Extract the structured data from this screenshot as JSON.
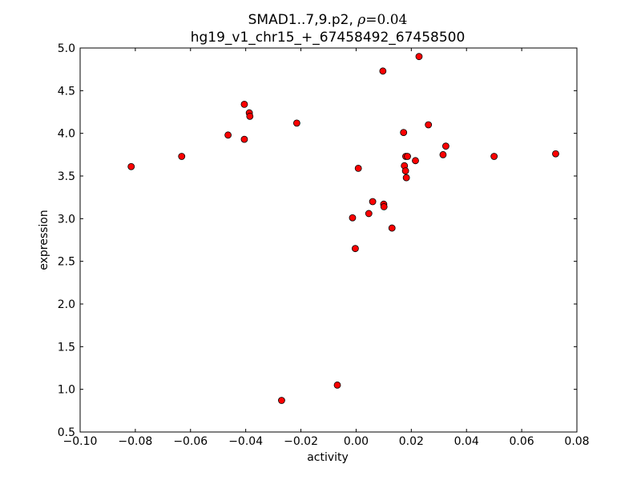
{
  "chart_data": {
    "type": "scatter",
    "title": {
      "prefix": "SMAD1..7,9.p2, ",
      "rho_symbol": "ρ",
      "rho_equals": "=",
      "rho_value": "0.04"
    },
    "subtitle": "hg19_v1_chr15_+_67458492_67458500",
    "xlabel": "activity",
    "ylabel": "expression",
    "xlim": [
      -0.1,
      0.08
    ],
    "ylim": [
      0.5,
      5.0
    ],
    "x_ticks": [
      -0.1,
      -0.08,
      -0.06,
      -0.04,
      -0.02,
      0.0,
      0.02,
      0.04,
      0.06,
      0.08
    ],
    "x_tick_labels": [
      "−0.10",
      "−0.08",
      "−0.06",
      "−0.04",
      "−0.02",
      "0.00",
      "0.02",
      "0.04",
      "0.06",
      "0.08"
    ],
    "y_ticks": [
      0.5,
      1.0,
      1.5,
      2.0,
      2.5,
      3.0,
      3.5,
      4.0,
      4.5,
      5.0
    ],
    "y_tick_labels": [
      "0.5",
      "1.0",
      "1.5",
      "2.0",
      "2.5",
      "3.0",
      "3.5",
      "4.0",
      "4.5",
      "5.0"
    ],
    "grid": false,
    "marker_color": "#ff0000",
    "marker_edge_color": "#000000",
    "points": [
      {
        "x": -0.0815,
        "y": 3.61
      },
      {
        "x": -0.0632,
        "y": 3.73
      },
      {
        "x": -0.0464,
        "y": 3.98
      },
      {
        "x": -0.0405,
        "y": 4.34
      },
      {
        "x": -0.0405,
        "y": 3.93
      },
      {
        "x": -0.0387,
        "y": 4.24
      },
      {
        "x": -0.0385,
        "y": 4.2
      },
      {
        "x": -0.0215,
        "y": 4.12
      },
      {
        "x": -0.027,
        "y": 0.87
      },
      {
        "x": -0.0068,
        "y": 1.05
      },
      {
        "x": -0.0013,
        "y": 3.01
      },
      {
        "x": -0.0003,
        "y": 2.65
      },
      {
        "x": 0.0008,
        "y": 3.59
      },
      {
        "x": 0.0046,
        "y": 3.06
      },
      {
        "x": 0.006,
        "y": 3.2
      },
      {
        "x": 0.01,
        "y": 3.17
      },
      {
        "x": 0.0101,
        "y": 3.14
      },
      {
        "x": 0.0097,
        "y": 4.73
      },
      {
        "x": 0.013,
        "y": 2.89
      },
      {
        "x": 0.0228,
        "y": 4.9
      },
      {
        "x": 0.0172,
        "y": 4.01
      },
      {
        "x": 0.0175,
        "y": 3.62
      },
      {
        "x": 0.018,
        "y": 3.73
      },
      {
        "x": 0.0186,
        "y": 3.73
      },
      {
        "x": 0.0179,
        "y": 3.56
      },
      {
        "x": 0.0182,
        "y": 3.48
      },
      {
        "x": 0.0215,
        "y": 3.68
      },
      {
        "x": 0.0262,
        "y": 4.1
      },
      {
        "x": 0.0315,
        "y": 3.75
      },
      {
        "x": 0.0325,
        "y": 3.85
      },
      {
        "x": 0.05,
        "y": 3.73
      },
      {
        "x": 0.0723,
        "y": 3.76
      }
    ]
  }
}
